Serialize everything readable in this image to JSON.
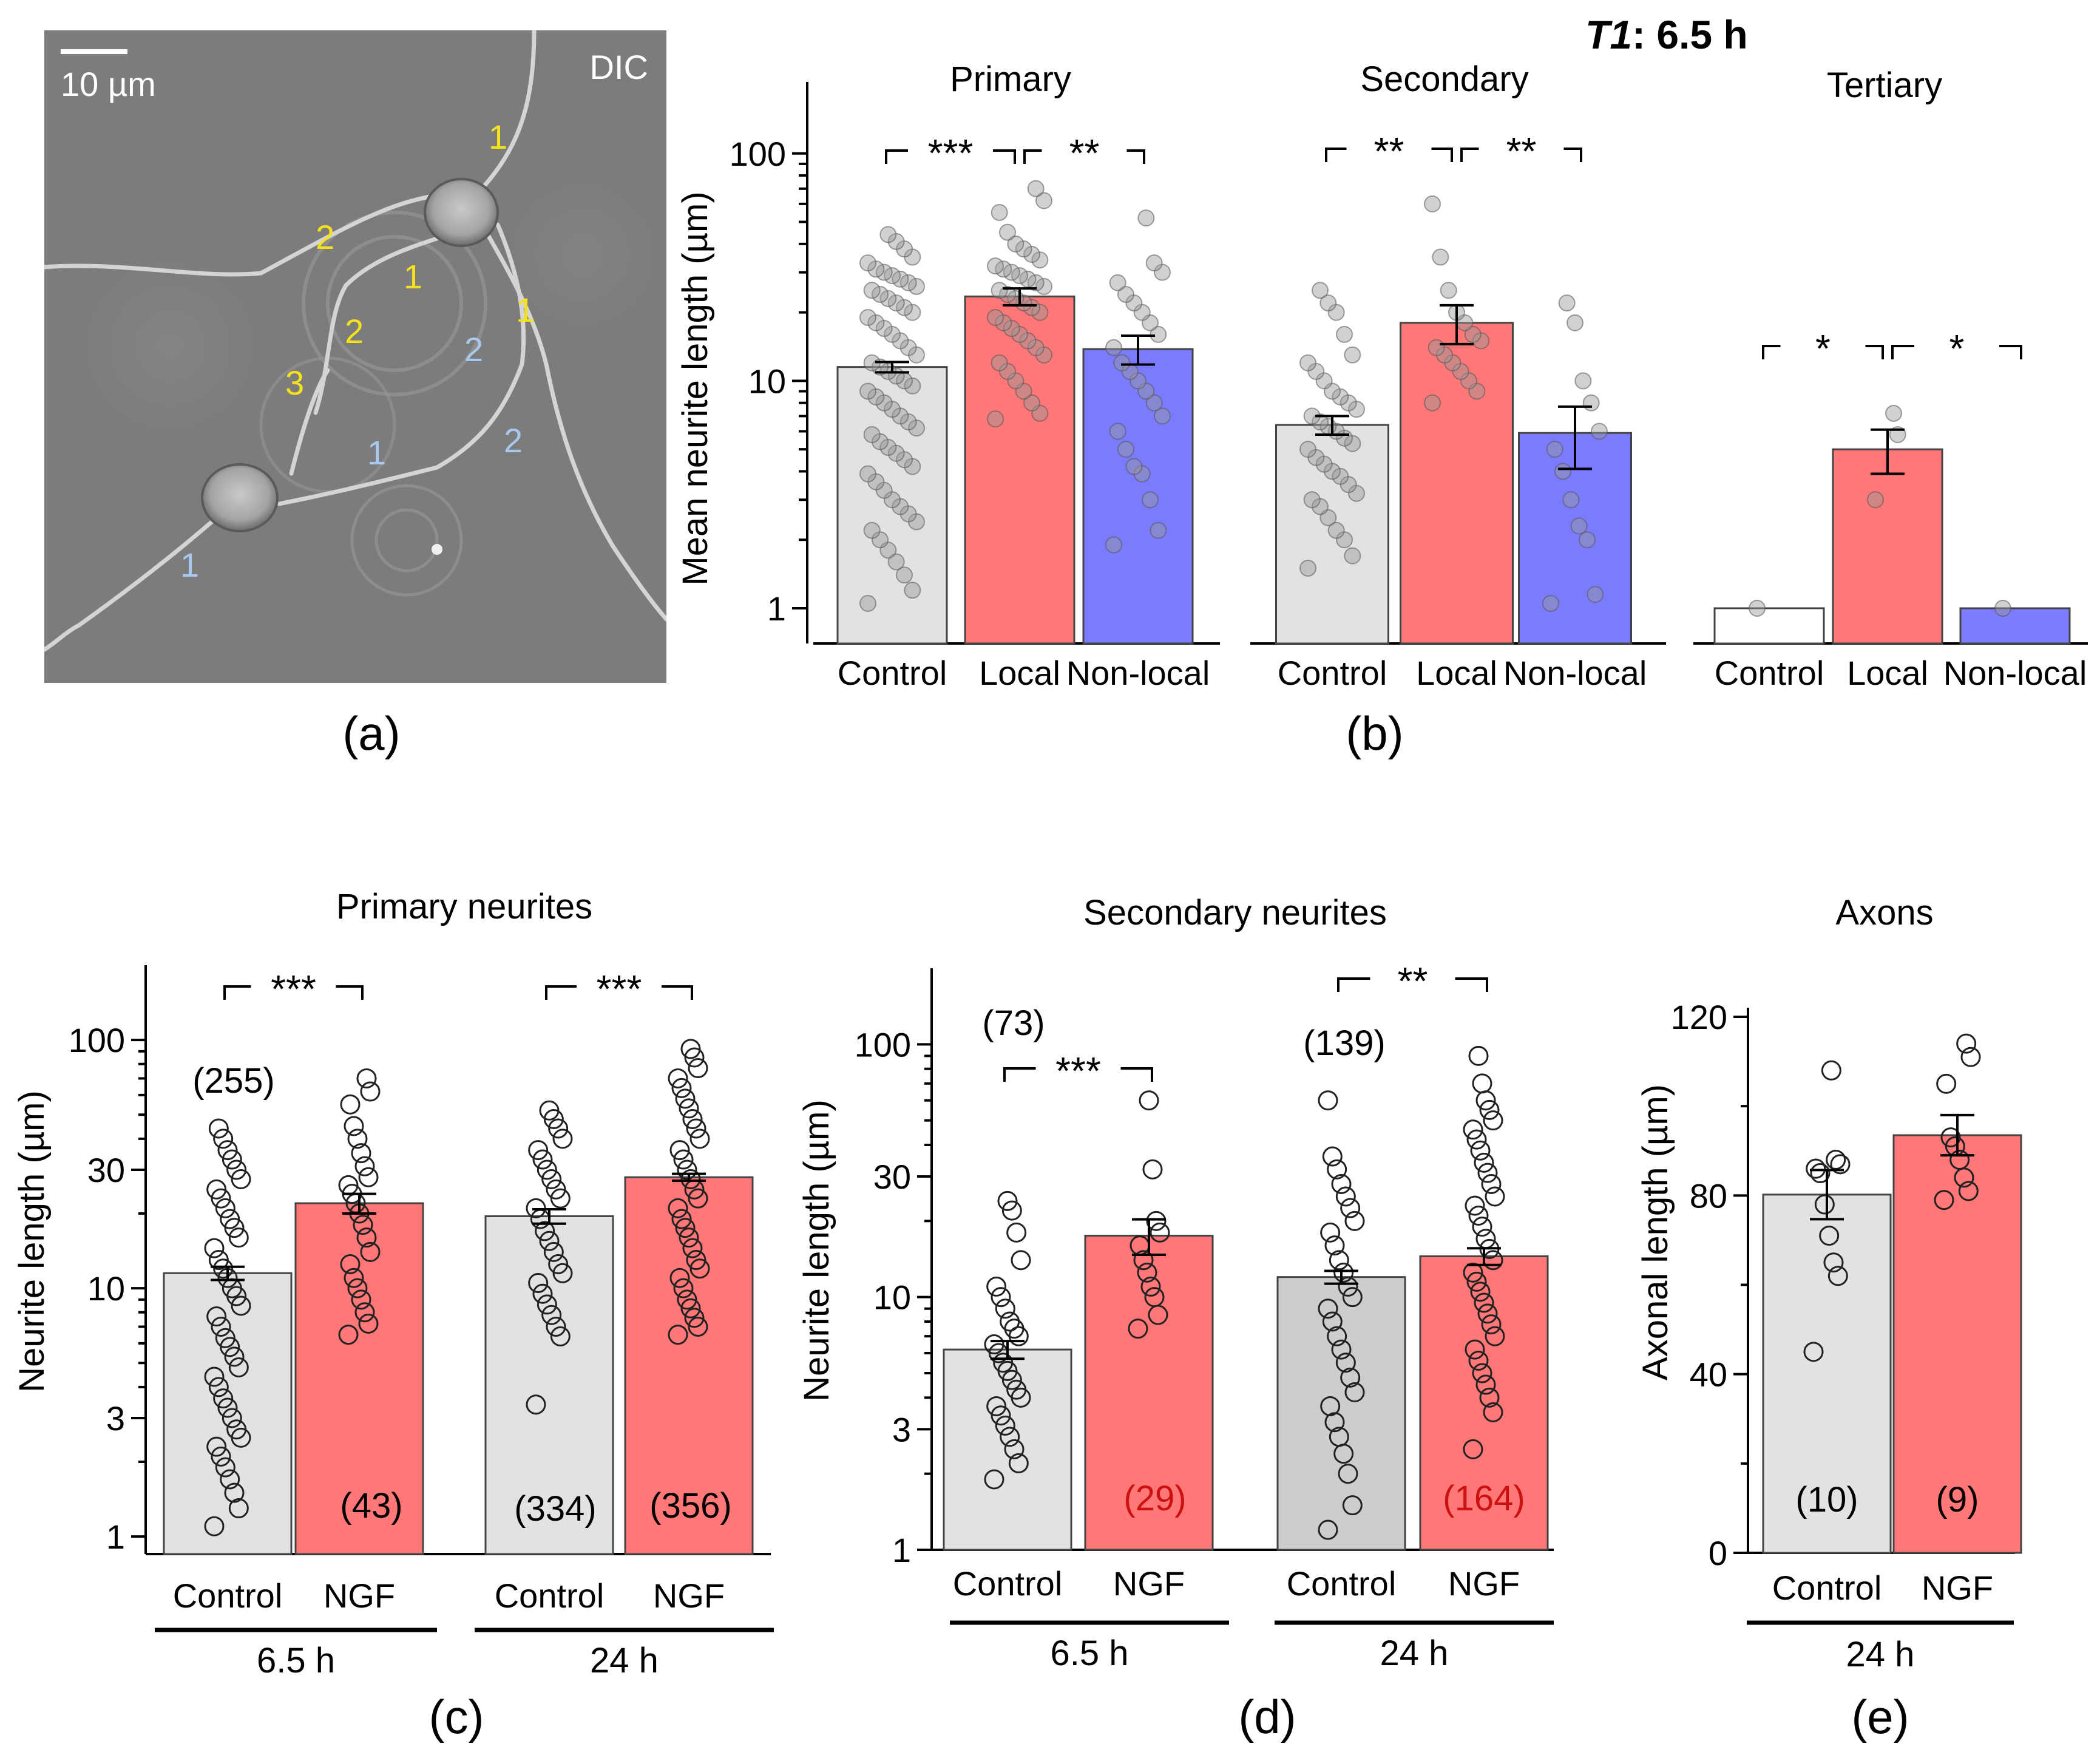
{
  "header": {
    "title_italic": "T1",
    "title_rest": ": 6.5 h"
  },
  "panel_labels": [
    "(a)",
    "(b)",
    "(c)",
    "(d)",
    "(e)"
  ],
  "micrograph": {
    "scale_bar_label": "10 µm",
    "mode_label": "DIC",
    "neurite_labels": [
      "1",
      "2",
      "1",
      "1",
      "2",
      "3",
      "2",
      "1",
      "2",
      "1"
    ],
    "colors": {
      "yellow": "#f4e21c",
      "blue": "#a9c8ee"
    }
  },
  "colors": {
    "control": "#e2e2e2",
    "local": "#ff7777",
    "nonlocal": "#7b7bff",
    "ngf": "#ff7777",
    "red_text": "#cc1111"
  },
  "chart_data": [
    {
      "id": "b",
      "type": "bar",
      "scale": "log",
      "ylabel": "Mean neurite length (µm)",
      "ylim": [
        0.7,
        200
      ],
      "yticks": [
        "1",
        "10",
        "100"
      ],
      "categories": [
        "Control",
        "Local",
        "Non-local"
      ],
      "groups": [
        {
          "title": "Primary",
          "values": [
            11.5,
            23.5,
            13.8
          ],
          "errors": [
            0.6,
            2.0,
            2.0
          ],
          "points": [
            [
              1.05,
              1.2,
              1.4,
              1.6,
              1.8,
              2,
              2.2,
              2.4,
              2.6,
              2.8,
              3,
              3.3,
              3.6,
              3.9,
              4.2,
              4.5,
              4.8,
              5.1,
              5.4,
              5.8,
              6.2,
              6.6,
              7,
              7.5,
              8,
              8.5,
              9,
              9.5,
              10,
              10.5,
              11,
              11.5,
              12,
              13,
              14,
              15,
              16,
              17,
              18,
              19,
              20,
              21,
              22,
              23,
              24,
              25,
              26,
              27,
              28,
              29,
              30,
              31,
              33,
              35,
              38,
              41,
              44
            ],
            [
              6.8,
              7.2,
              8,
              9,
              10,
              11,
              12,
              13,
              14,
              15,
              16,
              17,
              18,
              19,
              20,
              21,
              22,
              23,
              24,
              25,
              26,
              27,
              28,
              29,
              30,
              31,
              32,
              34,
              36,
              38,
              40,
              45,
              55,
              62,
              70
            ],
            [
              1.9,
              2.2,
              3,
              3.9,
              4.2,
              5,
              6,
              7,
              8,
              9,
              10,
              11,
              12,
              14,
              16,
              18,
              20,
              22,
              24,
              27,
              30,
              33,
              52
            ]
          ],
          "brackets": [
            {
              "from": 0,
              "to": 1,
              "label": "***"
            },
            {
              "from": 1,
              "to": 2,
              "label": "**"
            }
          ]
        },
        {
          "title": "Secondary",
          "values": [
            6.4,
            18.0,
            5.9
          ],
          "errors": [
            0.6,
            3.5,
            1.8
          ],
          "points": [
            [
              1.5,
              1.7,
              2,
              2.2,
              2.5,
              2.8,
              3,
              3.2,
              3.5,
              3.8,
              4,
              4.3,
              4.6,
              5,
              5.3,
              5.6,
              6,
              6.3,
              6.6,
              7,
              7.5,
              8,
              8.5,
              9,
              10,
              11,
              12,
              13,
              16,
              20,
              22,
              25
            ],
            [
              8,
              9,
              10,
              11,
              12,
              13,
              14,
              15,
              16,
              18,
              20,
              25,
              35,
              60
            ],
            [
              1.05,
              1.15,
              2,
              2.3,
              3,
              4,
              5,
              6,
              8,
              10,
              18,
              22
            ]
          ],
          "brackets": [
            {
              "from": 0,
              "to": 1,
              "label": "**"
            },
            {
              "from": 1,
              "to": 2,
              "label": "**"
            }
          ]
        },
        {
          "title": "Tertiary",
          "values": [
            1.0,
            5.0,
            1.0
          ],
          "errors": [
            0,
            1.1,
            0
          ],
          "points": [
            [
              1.0
            ],
            [
              3.0,
              5.8,
              7.2
            ],
            [
              1.0
            ]
          ],
          "brackets": [
            {
              "from": 0,
              "to": 1,
              "label": "*"
            },
            {
              "from": 1,
              "to": 2,
              "label": "*"
            }
          ]
        }
      ]
    },
    {
      "id": "c",
      "type": "bar",
      "scale": "log",
      "title": "Primary neurites",
      "ylabel": "Neurite length (µm)",
      "ylim": [
        0.85,
        200
      ],
      "yticks": [
        "1",
        "3",
        "10",
        "30",
        "100"
      ],
      "categories": [
        "Control",
        "NGF"
      ],
      "periods": [
        {
          "label": "6.5 h",
          "values": [
            11.5,
            22.0
          ],
          "errors": [
            0.7,
            2.0
          ],
          "counts": [
            "(255)",
            "(43)"
          ],
          "points": [
            [
              1.1,
              1.3,
              1.5,
              1.7,
              1.9,
              2.1,
              2.3,
              2.5,
              2.7,
              3,
              3.3,
              3.6,
              4,
              4.4,
              4.8,
              5.3,
              5.8,
              6.3,
              7,
              7.7,
              8.5,
              9.3,
              10,
              11,
              12,
              13,
              14.5,
              16,
              17.5,
              19,
              21,
              23,
              25,
              27.5,
              30,
              33,
              36,
              40,
              44
            ],
            [
              6.5,
              7.2,
              8,
              9,
              10,
              11,
              12.5,
              14,
              16,
              18,
              20,
              22,
              24,
              26,
              28,
              31,
              35,
              40,
              45,
              55,
              62,
              70
            ]
          ],
          "bracket": "***"
        },
        {
          "label": "24 h",
          "values": [
            19.5,
            28.0
          ],
          "errors": [
            1.3,
            0.9
          ],
          "counts": [
            "(334)",
            "(356)"
          ],
          "points": [
            [
              3.4,
              6.4,
              7,
              7.8,
              8.6,
              9.5,
              10.5,
              11.5,
              12.5,
              14,
              15.5,
              17,
              19,
              21,
              23,
              25,
              27.5,
              30,
              33,
              36,
              40,
              44,
              48,
              52
            ],
            [
              6.5,
              7,
              7.6,
              8.3,
              9,
              10,
              11,
              12,
              13,
              14.5,
              16,
              17.5,
              19,
              21,
              23,
              25,
              27.5,
              30,
              33,
              36,
              40,
              44,
              48,
              53,
              58,
              64,
              70,
              77,
              85,
              92
            ]
          ],
          "bracket": "***"
        }
      ]
    },
    {
      "id": "d",
      "type": "bar",
      "scale": "log",
      "title": "Secondary neurites",
      "ylabel": "Neurite length (µm)",
      "ylim": [
        1,
        200
      ],
      "yticks": [
        "1",
        "3",
        "10",
        "30",
        "100"
      ],
      "categories": [
        "Control",
        "NGF"
      ],
      "periods": [
        {
          "label": "6.5 h",
          "values": [
            6.2,
            17.5
          ],
          "errors": [
            0.5,
            2.8
          ],
          "counts": [
            "(73)",
            "(29)"
          ],
          "points": [
            [
              1.9,
              2.2,
              2.5,
              2.8,
              3.1,
              3.4,
              3.7,
              4,
              4.3,
              4.7,
              5.1,
              5.5,
              6,
              6.5,
              7,
              7.5,
              8,
              9,
              10,
              11,
              14,
              18,
              22,
              24
            ],
            [
              7.5,
              8.5,
              10,
              11,
              12.5,
              14,
              16,
              18,
              20,
              32,
              60
            ]
          ],
          "bracket": "***"
        },
        {
          "label": "24 h",
          "values": [
            12.0,
            14.5
          ],
          "errors": [
            0.7,
            1.1
          ],
          "counts": [
            "(139)",
            "(164)"
          ],
          "points": [
            [
              1.2,
              1.5,
              2,
              2.4,
              2.8,
              3.2,
              3.7,
              4.2,
              4.8,
              5.5,
              6.2,
              7,
              8,
              9,
              10,
              11,
              12.5,
              14,
              16,
              18,
              20,
              22.5,
              25,
              28,
              32,
              36,
              60
            ],
            [
              2.5,
              3.5,
              4,
              4.5,
              5,
              5.6,
              6.2,
              7,
              7.8,
              8.6,
              9.5,
              10.5,
              11.5,
              12.5,
              14,
              15.5,
              17,
              19,
              21,
              23,
              25,
              28,
              31,
              34,
              38,
              42,
              46,
              50,
              55,
              60,
              70,
              90
            ]
          ],
          "bracket": "**"
        }
      ]
    },
    {
      "id": "e",
      "type": "bar",
      "scale": "linear",
      "title": "Axons",
      "ylabel": "Axonal length (µm)",
      "ylim": [
        0,
        120
      ],
      "yticks": [
        "0",
        "40",
        "80",
        "120"
      ],
      "categories": [
        "Control",
        "NGF"
      ],
      "period": "24 h",
      "values": [
        80.2,
        93.5
      ],
      "errors": [
        5.5,
        4.5
      ],
      "counts": [
        "(10)",
        "(9)"
      ],
      "points": [
        [
          45,
          62,
          65,
          71,
          78,
          85,
          86,
          87,
          88,
          108
        ],
        [
          79,
          81,
          84,
          88,
          91,
          93,
          105,
          111,
          114
        ]
      ]
    }
  ]
}
